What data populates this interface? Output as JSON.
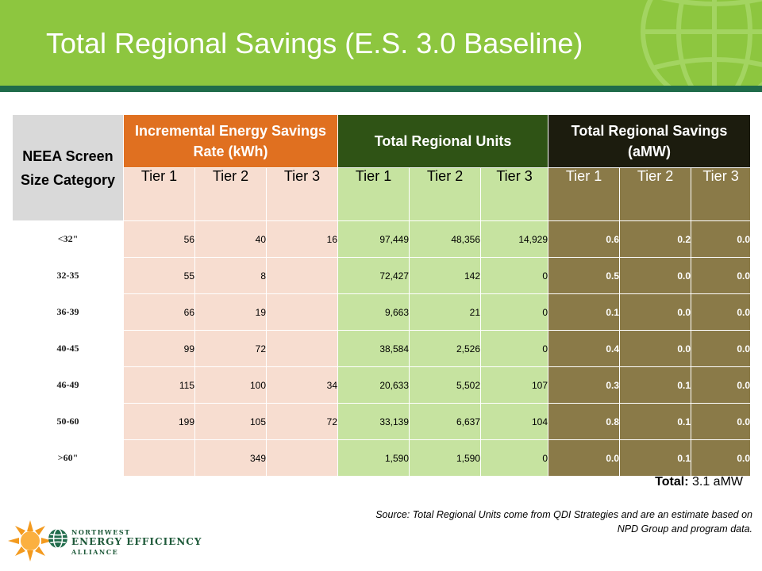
{
  "slide": {
    "title": "Total Regional Savings (E.S. 3.0 Baseline)"
  },
  "colors": {
    "header_green": "#8dc63f",
    "header_rule": "#1f6b4a",
    "incremental_orange": "#e07020",
    "units_dark_green": "#2f5315",
    "savings_black": "#1c1c0e",
    "incremental_fill": "#f7ddd0",
    "units_fill": "#c6e3a0",
    "savings_fill": "#8a7a48"
  },
  "table": {
    "category_header": "NEEA Screen Size Category",
    "groups": {
      "incremental": "Incremental Energy Savings Rate (kWh)",
      "units": "Total Regional Units",
      "savings": "Total Regional Savings (aMW)"
    },
    "tiers": [
      "Tier 1",
      "Tier 2",
      "Tier 3",
      "Tier 1",
      "Tier 2",
      "Tier 3",
      "Tier 1",
      "Tier 2",
      "Tier 3"
    ],
    "rows": [
      {
        "category": "<32\"",
        "rate": [
          "56",
          "40",
          "16"
        ],
        "units": [
          "97,449",
          "48,356",
          "14,929"
        ],
        "savings": [
          "0.6",
          "0.2",
          "0.0"
        ]
      },
      {
        "category": "32-35",
        "rate": [
          "55",
          "8",
          ""
        ],
        "units": [
          "72,427",
          "142",
          "0"
        ],
        "savings": [
          "0.5",
          "0.0",
          "0.0"
        ]
      },
      {
        "category": "36-39",
        "rate": [
          "66",
          "19",
          ""
        ],
        "units": [
          "9,663",
          "21",
          "0"
        ],
        "savings": [
          "0.1",
          "0.0",
          "0.0"
        ]
      },
      {
        "category": "40-45",
        "rate": [
          "99",
          "72",
          ""
        ],
        "units": [
          "38,584",
          "2,526",
          "0"
        ],
        "savings": [
          "0.4",
          "0.0",
          "0.0"
        ]
      },
      {
        "category": "46-49",
        "rate": [
          "115",
          "100",
          "34"
        ],
        "units": [
          "20,633",
          "5,502",
          "107"
        ],
        "savings": [
          "0.3",
          "0.1",
          "0.0"
        ]
      },
      {
        "category": "50-60",
        "rate": [
          "199",
          "105",
          "72"
        ],
        "units": [
          "33,139",
          "6,637",
          "104"
        ],
        "savings": [
          "0.8",
          "0.1",
          "0.0"
        ]
      },
      {
        "category": ">60\"",
        "rate": [
          "",
          "349",
          ""
        ],
        "units": [
          "1,590",
          "1,590",
          "0"
        ],
        "savings": [
          "0.0",
          "0.1",
          "0.0"
        ]
      }
    ]
  },
  "total": {
    "label": "Total:",
    "value": "3.1 aMW"
  },
  "source_note": "Source: Total Regional Units come from QDI Strategies and are an estimate based on NPD Group and program data.",
  "logo": {
    "line1": "NORTHWEST",
    "line2": "ENERGY EFFICIENCY",
    "line3": "ALLIANCE",
    "icons": [
      "sun-icon",
      "globe-icon"
    ]
  }
}
